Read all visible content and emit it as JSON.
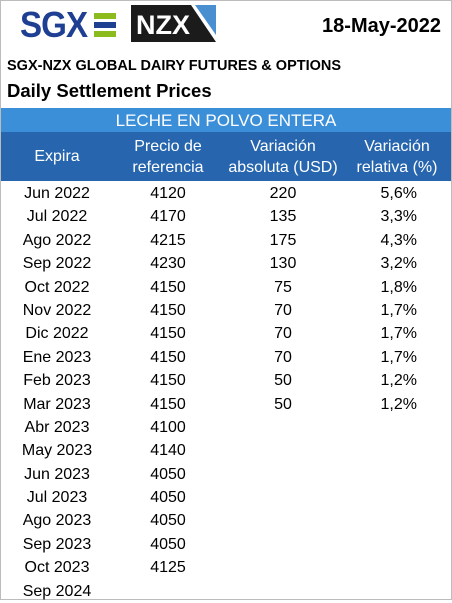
{
  "header": {
    "sgx_logo_text": "SGX",
    "nzx_logo_text": "NZX",
    "date": "18-May-2022",
    "subtitle": "SGX-NZX GLOBAL DAIRY FUTURES & OPTIONS",
    "title": "Daily Settlement Prices"
  },
  "colors": {
    "band": "#3b8fd9",
    "header_row": "#2766ae",
    "sgx_blue": "#1f3f93",
    "sgx_green": "#8cbb1e"
  },
  "table": {
    "product": "LECHE EN POLVO ENTERA",
    "columns": [
      {
        "line1": "Expira",
        "line2": ""
      },
      {
        "line1": "Precio de",
        "line2": "referencia"
      },
      {
        "line1": "Variación",
        "line2": "absoluta (USD)"
      },
      {
        "line1": "Variación",
        "line2": "relativa (%)"
      }
    ],
    "rows": [
      {
        "expira": "Jun 2022",
        "precio": "4120",
        "abs": "220",
        "rel": "5,6%"
      },
      {
        "expira": "Jul 2022",
        "precio": "4170",
        "abs": "135",
        "rel": "3,3%"
      },
      {
        "expira": "Ago 2022",
        "precio": "4215",
        "abs": "175",
        "rel": "4,3%"
      },
      {
        "expira": "Sep 2022",
        "precio": "4230",
        "abs": "130",
        "rel": "3,2%"
      },
      {
        "expira": "Oct 2022",
        "precio": "4150",
        "abs": "75",
        "rel": "1,8%"
      },
      {
        "expira": "Nov 2022",
        "precio": "4150",
        "abs": "70",
        "rel": "1,7%"
      },
      {
        "expira": "Dic 2022",
        "precio": "4150",
        "abs": "70",
        "rel": "1,7%"
      },
      {
        "expira": "Ene 2023",
        "precio": "4150",
        "abs": "70",
        "rel": "1,7%"
      },
      {
        "expira": "Feb 2023",
        "precio": "4150",
        "abs": "50",
        "rel": "1,2%"
      },
      {
        "expira": "Mar 2023",
        "precio": "4150",
        "abs": "50",
        "rel": "1,2%"
      },
      {
        "expira": "Abr 2023",
        "precio": "4100",
        "abs": "",
        "rel": ""
      },
      {
        "expira": "May 2023",
        "precio": "4140",
        "abs": "",
        "rel": ""
      },
      {
        "expira": "Jun 2023",
        "precio": "4050",
        "abs": "",
        "rel": ""
      },
      {
        "expira": "Jul 2023",
        "precio": "4050",
        "abs": "",
        "rel": ""
      },
      {
        "expira": "Ago 2023",
        "precio": "4050",
        "abs": "",
        "rel": ""
      },
      {
        "expira": "Sep 2023",
        "precio": "4050",
        "abs": "",
        "rel": ""
      },
      {
        "expira": "Oct 2023",
        "precio": "4125",
        "abs": "",
        "rel": ""
      },
      {
        "expira": "Sep 2024",
        "precio": "",
        "abs": "",
        "rel": ""
      }
    ]
  }
}
